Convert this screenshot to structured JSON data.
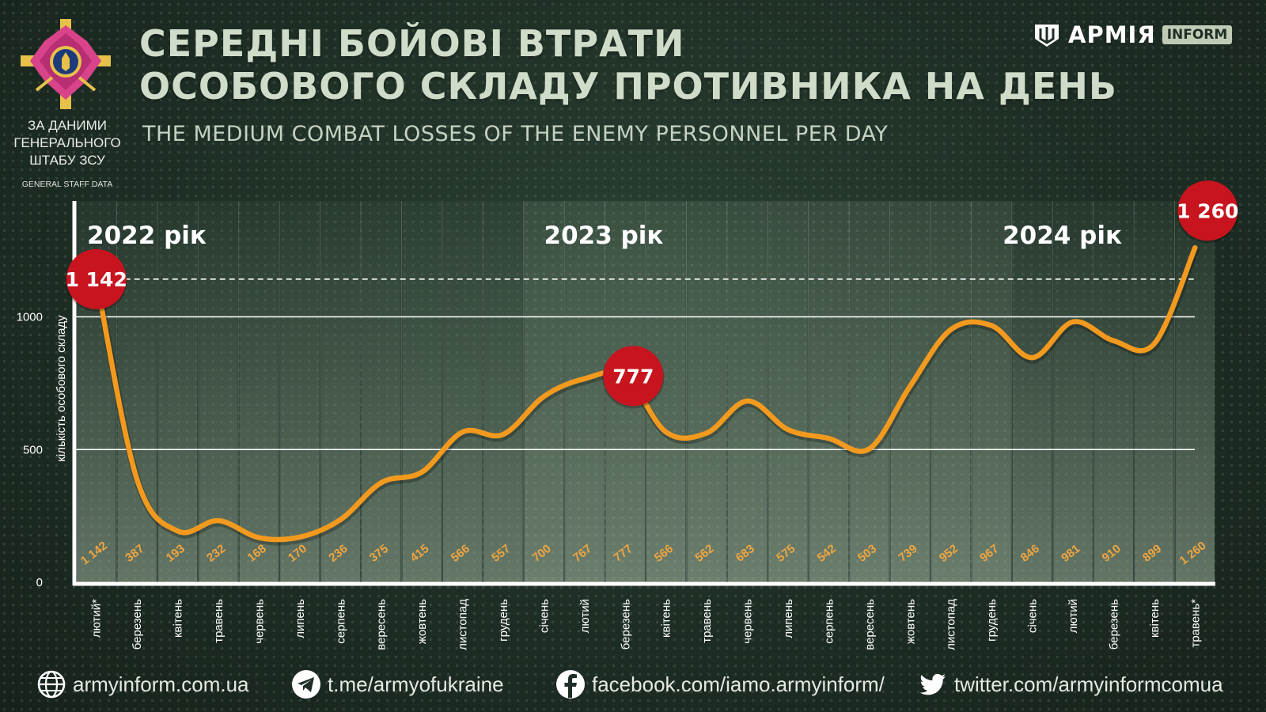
{
  "header": {
    "title_line1": "СЕРЕДНІ БОЙОВІ ВТРАТИ",
    "title_line2": "ОСОБОВОГО СКЛАДУ ПРОТИВНИКА НА ДЕНЬ",
    "subtitle": "THE MEDIUM COMBAT LOSSES OF THE ENEMY PERSONNEL PER DAY",
    "source_line1": "ЗА ДАНИМИ",
    "source_line2": "ГЕНЕРАЛЬНОГО",
    "source_line3": "ШТАБУ ЗСУ",
    "source_en": "GENERAL STAFF DATA",
    "logo_text": "АРМІЯ",
    "logo_badge": "INFORM",
    "emblem_icon": "armed-forces-emblem-icon",
    "logo_icon": "armyinform-shield-icon"
  },
  "footer": {
    "website": "armyinform.com.ua",
    "telegram": "t.me/armyofukraine",
    "facebook": "facebook.com/iamo.armyinform/",
    "twitter": "twitter.com/armyinformcomua"
  },
  "colors": {
    "line": "#f39a1e",
    "value_label": "#f0a540",
    "highlight": "#c8141e",
    "grid": "#ffffff",
    "title": "#cfdcc9"
  },
  "chart_data": {
    "type": "line",
    "ylabel": "кількість особового складу",
    "yticks": [
      0,
      500,
      1000
    ],
    "ylim": [
      0,
      1300
    ],
    "reference_line": 1142,
    "grid": "horizontal",
    "categories": [
      "лютий*",
      "березень",
      "квітень",
      "травень",
      "червень",
      "липень",
      "серпень",
      "вересень",
      "жовтень",
      "листопад",
      "грудень",
      "січень",
      "лютий",
      "березень",
      "квітень",
      "травень",
      "червень",
      "липень",
      "серпень",
      "вересень",
      "жовтень",
      "листопад",
      "грудень",
      "січень",
      "лютий",
      "березень",
      "квітень",
      "травень*"
    ],
    "values": [
      1142,
      387,
      193,
      232,
      168,
      170,
      236,
      375,
      415,
      566,
      557,
      700,
      767,
      777,
      566,
      562,
      683,
      575,
      542,
      503,
      739,
      952,
      967,
      846,
      981,
      910,
      899,
      1260
    ],
    "value_labels": [
      "1 142",
      "387",
      "193",
      "232",
      "168",
      "170",
      "236",
      "375",
      "415",
      "566",
      "557",
      "700",
      "767",
      "777",
      "566",
      "562",
      "683",
      "575",
      "542",
      "503",
      "739",
      "952",
      "967",
      "846",
      "981",
      "910",
      "899",
      "1 260"
    ],
    "years": [
      {
        "label": "2022 рік",
        "start": 0,
        "end": 10
      },
      {
        "label": "2023 рік",
        "start": 11,
        "end": 22
      },
      {
        "label": "2024 рік",
        "start": 23,
        "end": 27
      }
    ],
    "highlights": [
      {
        "index": 0,
        "label": "1 142"
      },
      {
        "index": 13,
        "label": "777"
      },
      {
        "index": 27,
        "label": "1 260"
      }
    ]
  }
}
